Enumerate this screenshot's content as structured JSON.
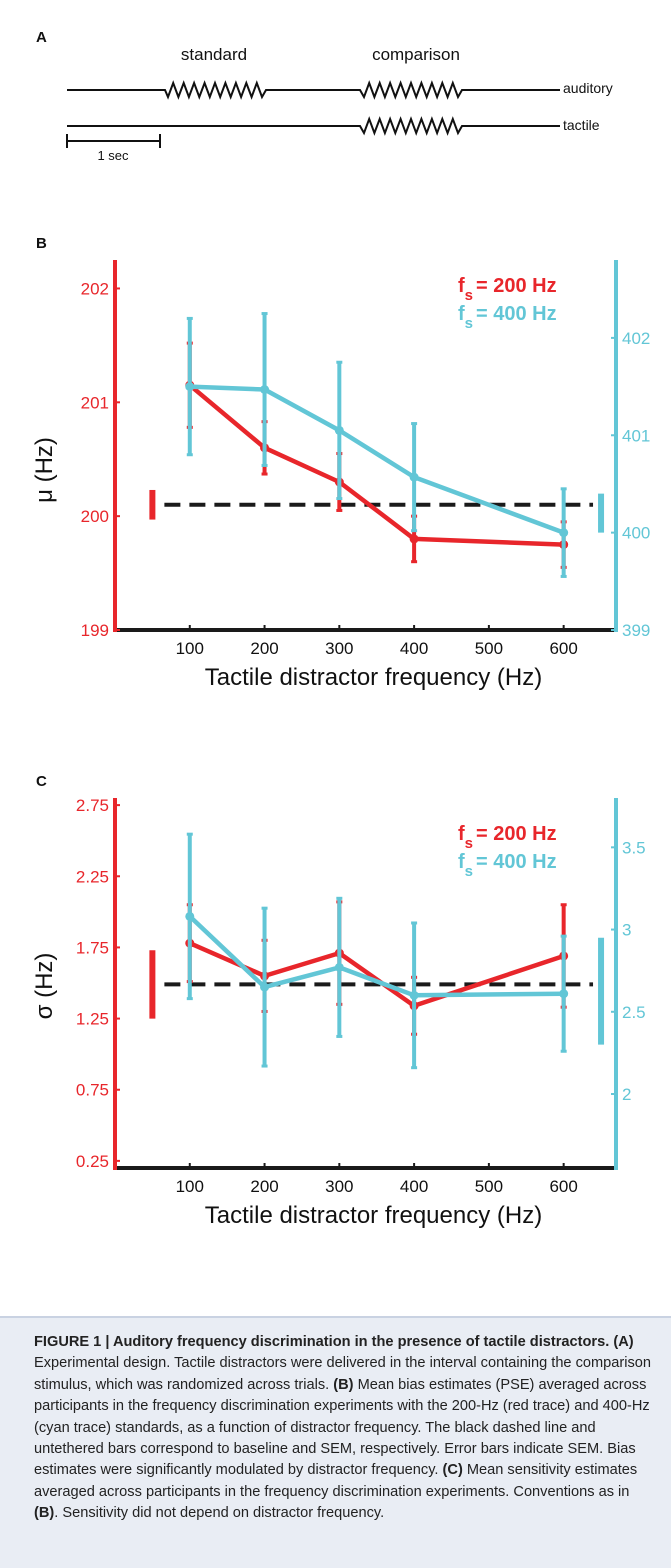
{
  "panel_a": {
    "label": "A",
    "standard_label": "standard",
    "comparison_label": "comparison",
    "auditory_label": "auditory",
    "tactile_label": "tactile",
    "scale_label": "1 sec"
  },
  "panel_b": {
    "label": "B"
  },
  "panel_c": {
    "label": "C"
  },
  "colors": {
    "red": "#e8262b",
    "cyan": "#62c6d6",
    "baseline": "#1a1a1a"
  },
  "chart_data": [
    {
      "type": "line",
      "panel": "B",
      "xlabel": "Tactile distractor frequency (Hz)",
      "ylabel": "μ (Hz)",
      "x_ticks": [
        100,
        200,
        300,
        400,
        500,
        600
      ],
      "xlim": [
        0,
        670
      ],
      "y_left": {
        "range": [
          199,
          202.25
        ],
        "ticks": [
          199,
          200,
          201,
          202
        ]
      },
      "y_right": {
        "range": [
          399,
          402.8
        ],
        "ticks": [
          399,
          400,
          401,
          402
        ]
      },
      "legend": [
        {
          "prefix": "f",
          "sub": "s",
          "text": "= 200 Hz",
          "color": "red"
        },
        {
          "prefix": "f",
          "sub": "s",
          "text": "= 400 Hz",
          "color": "cyan"
        }
      ],
      "legend_position": "top-right",
      "series": [
        {
          "name": "200 Hz",
          "axis": "left",
          "color": "red",
          "x": [
            100,
            200,
            300,
            400,
            600
          ],
          "y": [
            201.15,
            200.6,
            200.3,
            199.8,
            199.75
          ],
          "err": [
            0.37,
            0.23,
            0.25,
            0.2,
            0.2
          ]
        },
        {
          "name": "400 Hz",
          "axis": "right",
          "color": "cyan",
          "x": [
            100,
            200,
            300,
            400,
            600
          ],
          "y": [
            401.5,
            401.47,
            401.05,
            400.57,
            400.0
          ],
          "err": [
            0.7,
            0.78,
            0.7,
            0.55,
            0.45
          ]
        }
      ],
      "baseline": {
        "value": 200.1,
        "left_bar": [
          199.97,
          200.23
        ],
        "right_bar": [
          400.0,
          400.4
        ]
      }
    },
    {
      "type": "line",
      "panel": "C",
      "xlabel": "Tactile distractor frequency (Hz)",
      "ylabel": "σ (Hz)",
      "x_ticks": [
        100,
        200,
        300,
        400,
        500,
        600
      ],
      "xlim": [
        0,
        670
      ],
      "y_left": {
        "range": [
          0.2,
          2.8
        ],
        "ticks": [
          0.25,
          0.75,
          1.25,
          1.75,
          2.25,
          2.75
        ],
        "tick_labels": [
          "0.25",
          "0.75",
          "1.25",
          "1.75",
          "2.25",
          "2.75"
        ]
      },
      "y_right": {
        "range": [
          1.55,
          3.8
        ],
        "ticks": [
          2,
          2.5,
          3,
          3.5
        ],
        "tick_labels": [
          "2",
          "2.5",
          "3",
          "3.5"
        ]
      },
      "legend": [
        {
          "prefix": "f",
          "sub": "s",
          "text": "= 200 Hz",
          "color": "red"
        },
        {
          "prefix": "f",
          "sub": "s",
          "text": "= 400 Hz",
          "color": "cyan"
        }
      ],
      "legend_position": "top-right",
      "series": [
        {
          "name": "200 Hz",
          "axis": "left",
          "color": "red",
          "x": [
            100,
            200,
            300,
            400,
            600
          ],
          "y": [
            1.78,
            1.55,
            1.71,
            1.34,
            1.69
          ],
          "err": [
            0.27,
            0.25,
            0.36,
            0.2,
            0.36
          ]
        },
        {
          "name": "400 Hz",
          "axis": "right",
          "color": "cyan",
          "x": [
            100,
            200,
            300,
            400,
            600
          ],
          "y": [
            3.08,
            2.65,
            2.77,
            2.6,
            2.61
          ],
          "err": [
            0.5,
            0.48,
            0.42,
            0.44,
            0.35
          ]
        }
      ],
      "baseline": {
        "value": 1.49,
        "left_bar": [
          1.25,
          1.73
        ],
        "right_bar": [
          2.3,
          2.95
        ]
      }
    }
  ],
  "caption": {
    "fig_label": "FIGURE 1 | Auditory frequency discrimination in the presence of tactile distractors.",
    "a_label": "(A)",
    "a_text": " Experimental design. Tactile distractors were delivered in the interval containing the comparison stimulus, which was randomized across trials. ",
    "b_label": "(B)",
    "b_text": " Mean bias estimates (PSE) averaged across participants in the frequency discrimination experiments with the 200-Hz (red trace) and 400-Hz (cyan trace) standards, as a function of distractor frequency. The black dashed line and untethered bars correspond to baseline and SEM, respectively. Error bars indicate SEM. Bias estimates were significantly modulated by distractor frequency. ",
    "c_label": "(C)",
    "c_text": " Mean sensitivity estimates averaged across participants in the frequency discrimination experiments. Conventions as in ",
    "c_ref": "(B)",
    "c_end": ". Sensitivity did not depend on distractor frequency."
  }
}
